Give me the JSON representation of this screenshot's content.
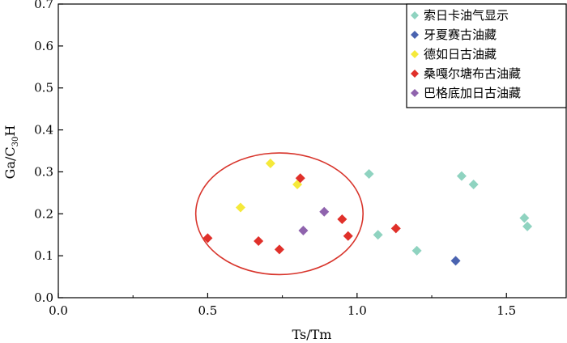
{
  "chart_data": {
    "type": "scatter",
    "xlabel": "Ts/Tm",
    "ylabel_main": "Ga/C",
    "ylabel_sub": "30",
    "ylabel_tail": "H",
    "xlim": [
      0.0,
      1.7
    ],
    "ylim": [
      0.0,
      0.7
    ],
    "xticks": [
      "0.0",
      "0.5",
      "1.0",
      "1.5"
    ],
    "yticks": [
      "0.0",
      "0.1",
      "0.2",
      "0.3",
      "0.4",
      "0.5",
      "0.6",
      "0.7"
    ],
    "legend_position": "top-right",
    "grid": false,
    "series": [
      {
        "name": "索日卡油气显示",
        "color": "#8fd3c0",
        "points": [
          [
            1.04,
            0.295
          ],
          [
            1.07,
            0.15
          ],
          [
            1.2,
            0.112
          ],
          [
            1.35,
            0.29
          ],
          [
            1.39,
            0.27
          ],
          [
            1.56,
            0.19
          ],
          [
            1.57,
            0.17
          ]
        ]
      },
      {
        "name": "牙夏赛古油藏",
        "color": "#4a63b0",
        "points": [
          [
            1.33,
            0.088
          ]
        ]
      },
      {
        "name": "德如日古油藏",
        "color": "#f5e93a",
        "points": [
          [
            0.71,
            0.32
          ],
          [
            0.8,
            0.27
          ],
          [
            0.61,
            0.215
          ]
        ]
      },
      {
        "name": "桑嘎尔塘布古油藏",
        "color": "#e0302a",
        "points": [
          [
            0.5,
            0.142
          ],
          [
            0.67,
            0.135
          ],
          [
            0.74,
            0.115
          ],
          [
            0.81,
            0.285
          ],
          [
            0.95,
            0.187
          ],
          [
            0.97,
            0.147
          ],
          [
            1.13,
            0.165
          ]
        ]
      },
      {
        "name": "巴格底加日古油藏",
        "color": "#8f63ad",
        "points": [
          [
            0.89,
            0.205
          ],
          [
            0.82,
            0.16
          ]
        ]
      }
    ],
    "annotation_ellipse": {
      "center": [
        0.74,
        0.2
      ],
      "rx": 0.56,
      "ry": 0.145,
      "color": "#d8352c"
    }
  }
}
